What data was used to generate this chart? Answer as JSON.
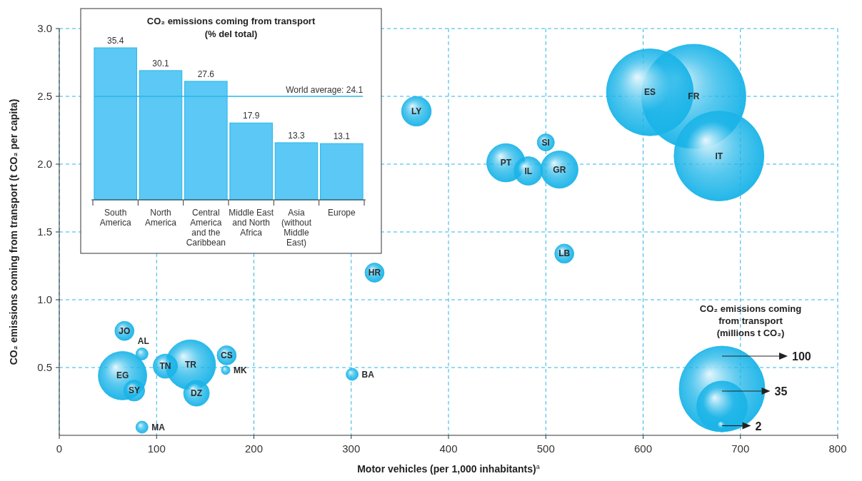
{
  "chart_data": [
    {
      "type": "bubble",
      "xlabel": "Motor vehicles (per 1,000 inhabitants)$^{a}$",
      "ylabel": "CO₂ emissions coming from transport (t CO₂ per capita)",
      "xlim": [
        0,
        800
      ],
      "xticks": [
        0,
        100,
        200,
        300,
        400,
        500,
        600,
        700,
        800
      ],
      "ylim": [
        0,
        3
      ],
      "yticks": [
        {
          "value": 0.5,
          "label": "0.5"
        },
        {
          "value": 1,
          "label": "1.0"
        },
        {
          "value": 1.5,
          "label": "1.5"
        },
        {
          "value": 2,
          "label": "2.0"
        },
        {
          "value": 2.5,
          "label": "2.5"
        },
        {
          "value": 3,
          "label": "3.0"
        }
      ],
      "grid": true,
      "legend_title": "CO₂ emissions coming from transport (millions t CO₂)",
      "size_legend": [
        2,
        35,
        100
      ],
      "x": [
        652,
        607,
        678,
        367,
        500,
        459,
        482,
        514,
        519,
        324,
        67,
        85,
        65,
        77,
        85,
        135,
        109,
        141,
        172,
        171,
        301
      ],
      "series": [
        {
          "color": "#1ab4e8",
          "values": [
            2.5,
            2.53,
            2.06,
            2.39,
            2.16,
            2.01,
            1.95,
            1.96,
            1.34,
            1.2,
            0.77,
            0.6,
            0.44,
            0.33,
            0.06,
            0.52,
            0.51,
            0.31,
            0.59,
            0.48,
            0.45
          ],
          "sizes": [
            148,
            103,
            110,
            12,
            4,
            20,
            11,
            19,
            5,
            5,
            5,
            2,
            32,
            6,
            2,
            34,
            8,
            9,
            5,
            1,
            2
          ]
        }
      ],
      "annotations": [
        {
          "text": "FR",
          "x": 652,
          "y": 2.5
        },
        {
          "text": "ES",
          "x": 607,
          "y": 2.53
        },
        {
          "text": "IT",
          "x": 678,
          "y": 2.06
        },
        {
          "text": "LY",
          "x": 367,
          "y": 2.39
        },
        {
          "text": "SI",
          "x": 500,
          "y": 2.16
        },
        {
          "text": "PT",
          "x": 459,
          "y": 2.01
        },
        {
          "text": "IL",
          "x": 482,
          "y": 1.95
        },
        {
          "text": "GR",
          "x": 514,
          "y": 1.96
        },
        {
          "text": "LB",
          "x": 519,
          "y": 1.34
        },
        {
          "text": "HR",
          "x": 324,
          "y": 1.2
        },
        {
          "text": "JO",
          "x": 67,
          "y": 0.77
        },
        {
          "text": "AL",
          "x": 85,
          "y": 0.6
        },
        {
          "text": "EG",
          "x": 65,
          "y": 0.44
        },
        {
          "text": "SY",
          "x": 77,
          "y": 0.33
        },
        {
          "text": "MA",
          "x": 85,
          "y": 0.06
        },
        {
          "text": "TR",
          "x": 135,
          "y": 0.52
        },
        {
          "text": "TN",
          "x": 109,
          "y": 0.51
        },
        {
          "text": "DZ",
          "x": 141,
          "y": 0.31
        },
        {
          "text": "CS",
          "x": 172,
          "y": 0.59
        },
        {
          "text": "MK",
          "x": 171,
          "y": 0.48
        },
        {
          "text": "BA",
          "x": 301,
          "y": 0.45
        }
      ]
    },
    {
      "type": "bar",
      "title": "CO₂ emissions coming from transport (% del total)",
      "categories": [
        "South America",
        "North America",
        "Central America and the Caribbean",
        "Middle East and North Africa",
        "Asia (without Middle East)",
        "Europe"
      ],
      "values": [
        35.4,
        30.1,
        27.6,
        17.9,
        13.3,
        13.1
      ],
      "color": "#5bc8f5",
      "data_labels": true,
      "tick_labels": "x",
      "ref_lines": [
        {
          "axis": "y",
          "value": 24.1,
          "label": "World average: 24.1",
          "color": "#29b6e8"
        }
      ]
    }
  ]
}
